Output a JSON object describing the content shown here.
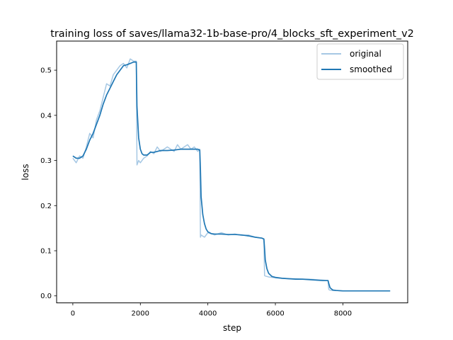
{
  "chart_data": {
    "type": "line",
    "title": "training loss of saves/llama32-1b-base-pro/4_blocks_sft_experiment_v2",
    "xlabel": "step",
    "ylabel": "loss",
    "xlim": [
      -480,
      9920
    ],
    "ylim": [
      -0.0155,
      0.5645
    ],
    "xticks": [
      0,
      2000,
      4000,
      6000,
      8000
    ],
    "yticks": [
      0.0,
      0.1,
      0.2,
      0.3,
      0.4,
      0.5
    ],
    "xtick_labels": [
      "0",
      "2000",
      "4000",
      "6000",
      "8000"
    ],
    "ytick_labels": [
      "0.0",
      "0.1",
      "0.2",
      "0.3",
      "0.4",
      "0.5"
    ],
    "grid": false,
    "legend_position": "top-right",
    "series": [
      {
        "name": "original",
        "color": "#a6c8e4",
        "x": [
          0,
          100,
          200,
          300,
          400,
          500,
          600,
          700,
          800,
          900,
          1000,
          1100,
          1200,
          1300,
          1400,
          1500,
          1600,
          1700,
          1800,
          1880,
          1900,
          1950,
          2000,
          2100,
          2200,
          2300,
          2400,
          2500,
          2600,
          2700,
          2800,
          2900,
          3000,
          3100,
          3200,
          3300,
          3400,
          3500,
          3600,
          3700,
          3760,
          3780,
          3800,
          3900,
          4000,
          4200,
          4400,
          4600,
          4800,
          5000,
          5200,
          5400,
          5600,
          5660,
          5680,
          5700,
          5800,
          6000,
          6200,
          6400,
          6600,
          6800,
          7000,
          7200,
          7400,
          7560,
          7580,
          7600,
          7700,
          7800,
          8000,
          8200,
          8400,
          8600,
          8800,
          9000,
          9200,
          9400
        ],
        "y": [
          0.305,
          0.295,
          0.31,
          0.305,
          0.33,
          0.36,
          0.35,
          0.39,
          0.41,
          0.44,
          0.47,
          0.465,
          0.49,
          0.5,
          0.51,
          0.515,
          0.505,
          0.525,
          0.52,
          0.52,
          0.29,
          0.3,
          0.295,
          0.305,
          0.31,
          0.32,
          0.315,
          0.33,
          0.32,
          0.325,
          0.33,
          0.325,
          0.32,
          0.335,
          0.325,
          0.33,
          0.335,
          0.325,
          0.33,
          0.32,
          0.325,
          0.13,
          0.135,
          0.13,
          0.14,
          0.135,
          0.14,
          0.135,
          0.137,
          0.134,
          0.135,
          0.13,
          0.128,
          0.125,
          0.045,
          0.044,
          0.042,
          0.04,
          0.039,
          0.038,
          0.038,
          0.037,
          0.037,
          0.036,
          0.035,
          0.034,
          0.015,
          0.013,
          0.012,
          0.012,
          0.011,
          0.011,
          0.011,
          0.011,
          0.011,
          0.011,
          0.011,
          0.011
        ]
      },
      {
        "name": "smoothed",
        "color": "#1f77b4",
        "x": [
          0,
          100,
          200,
          300,
          400,
          500,
          600,
          700,
          800,
          900,
          1000,
          1100,
          1200,
          1300,
          1400,
          1500,
          1600,
          1700,
          1800,
          1880,
          1900,
          1950,
          2000,
          2050,
          2100,
          2200,
          2300,
          2400,
          2600,
          2800,
          3000,
          3200,
          3400,
          3600,
          3700,
          3760,
          3780,
          3800,
          3850,
          3900,
          3950,
          4000,
          4100,
          4200,
          4400,
          4600,
          4800,
          5000,
          5200,
          5400,
          5600,
          5660,
          5680,
          5700,
          5750,
          5800,
          5900,
          6000,
          6200,
          6400,
          6600,
          6800,
          7000,
          7200,
          7400,
          7560,
          7580,
          7620,
          7700,
          7800,
          8000,
          8200,
          8400,
          8600,
          8800,
          9000,
          9200,
          9400
        ],
        "y": [
          0.31,
          0.305,
          0.305,
          0.31,
          0.325,
          0.345,
          0.36,
          0.38,
          0.4,
          0.425,
          0.445,
          0.46,
          0.475,
          0.49,
          0.5,
          0.51,
          0.512,
          0.515,
          0.518,
          0.518,
          0.42,
          0.35,
          0.325,
          0.315,
          0.312,
          0.312,
          0.318,
          0.318,
          0.322,
          0.322,
          0.323,
          0.325,
          0.325,
          0.325,
          0.325,
          0.323,
          0.28,
          0.22,
          0.18,
          0.16,
          0.148,
          0.142,
          0.138,
          0.137,
          0.137,
          0.136,
          0.136,
          0.135,
          0.133,
          0.13,
          0.128,
          0.126,
          0.105,
          0.08,
          0.06,
          0.05,
          0.043,
          0.041,
          0.039,
          0.038,
          0.037,
          0.037,
          0.036,
          0.035,
          0.034,
          0.034,
          0.028,
          0.018,
          0.013,
          0.012,
          0.011,
          0.011,
          0.011,
          0.011,
          0.011,
          0.011,
          0.011,
          0.011
        ]
      }
    ]
  }
}
